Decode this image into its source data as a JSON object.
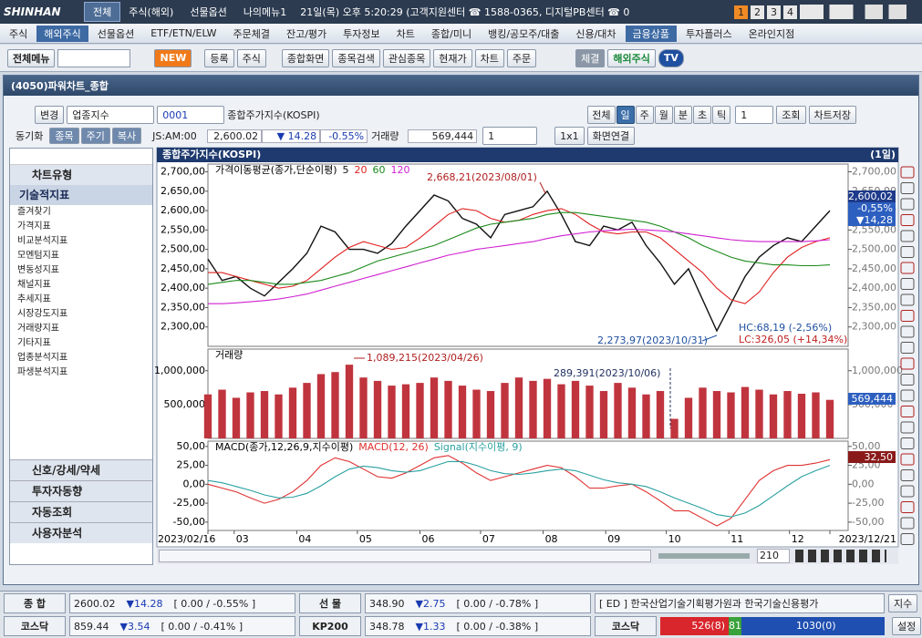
{
  "top_bar": {
    "logo": "SHINHAN",
    "tabs": [
      "전체",
      "주식(해외)",
      "선물옵션",
      "나의메뉴1"
    ],
    "clock": "21일(목) 오후 5:20:29 (고객지원센터 ☎ 1588-0365, 디지털PB센터 ☎ 0",
    "pages": [
      "1",
      "2",
      "3",
      "4"
    ]
  },
  "menu": [
    "주식",
    "해외주식",
    "선물옵션",
    "ETF/ETN/ELW",
    "주문체결",
    "잔고/평가",
    "투자정보",
    "차트",
    "종합/미니",
    "뱅킹/공모주/대출",
    "신용/대차",
    "금융상품",
    "투자플러스",
    "온라인지점"
  ],
  "toolbar": {
    "all_menu": "전체메뉴",
    "new": "NEW",
    "buttons": [
      "등록",
      "주식"
    ],
    "screens": [
      "종합화면",
      "종목검색",
      "관심종목",
      "현재가",
      "차트",
      "주문"
    ],
    "fill": "체결",
    "overseas": "해외주식",
    "tv": "TV"
  },
  "window_title": "(4050)파워차트_종합",
  "chart_toolbar": {
    "change": "변경",
    "market": "업종지수",
    "code": "0001",
    "name": "종합주가지수(KOSPI)",
    "periods": [
      "전체",
      "일",
      "주",
      "월",
      "분",
      "초",
      "틱"
    ],
    "period_n": "1",
    "query": "조회",
    "save": "차트저장"
  },
  "quote_bar": {
    "tabs": [
      "동기화",
      "종목",
      "주기",
      "복사"
    ],
    "session": "JS:AM:00",
    "price": "2,600.02",
    "change": "▼ 14.28",
    "rate": "-0.55%",
    "vol_label": "거래량",
    "volume": "569,444",
    "count": "1",
    "layout": "1x1",
    "link": "화면연결"
  },
  "side": {
    "chart_type": "차트유형",
    "tech": "기술적지표",
    "tree": [
      "즐겨찾기",
      "가격지표",
      "비교분석지표",
      "모멘텀지표",
      "변동성지표",
      "채널지표",
      "추세지표",
      "시장강도지표",
      "거래량지표",
      "기타지표",
      "업종분석지표",
      "파생분석지표"
    ],
    "bottom": [
      "신호/강세/약세",
      "투자자동향",
      "자동조회",
      "사용자분석"
    ]
  },
  "chart_header": {
    "title": "종합주가지수(KOSPI)",
    "period": "(1일)"
  },
  "chart_data": [
    {
      "type": "line",
      "legend_title": "가격이동평균(종가,단순이평)",
      "x": [
        47,
        54,
        61,
        68,
        75,
        82,
        89,
        96,
        103,
        110,
        117,
        124,
        131,
        138,
        145,
        152,
        159,
        166,
        173,
        180,
        187,
        194,
        201,
        208,
        215,
        222,
        229,
        236,
        243,
        250,
        257,
        264,
        271,
        278,
        285,
        292,
        299,
        306,
        313,
        320,
        327,
        334,
        341,
        348,
        355
      ],
      "xlim": [
        47,
        355
      ],
      "xticks": [
        {
          "value": 47,
          "label": "2023/02/16"
        },
        {
          "value": 60,
          "label": "03"
        },
        {
          "value": 91,
          "label": "04"
        },
        {
          "value": 121,
          "label": "05"
        },
        {
          "value": 152,
          "label": "06"
        },
        {
          "value": 182,
          "label": "07"
        },
        {
          "value": 213,
          "label": "08"
        },
        {
          "value": 244,
          "label": "09"
        },
        {
          "value": 274,
          "label": "10"
        },
        {
          "value": 305,
          "label": "11"
        },
        {
          "value": 335,
          "label": "12"
        },
        {
          "value": 355,
          "label": "2023/12/21"
        }
      ],
      "ylim": [
        2250,
        2720
      ],
      "yticks": [
        {
          "value": 2300,
          "label": "2,300,00"
        },
        {
          "value": 2350,
          "label": "2,350,00"
        },
        {
          "value": 2400,
          "label": "2,400,00"
        },
        {
          "value": 2450,
          "label": "2,450,00"
        },
        {
          "value": 2500,
          "label": "2,500,00"
        },
        {
          "value": 2550,
          "label": "2,550,00"
        },
        {
          "value": 2600,
          "label": "2,600,00"
        },
        {
          "value": 2650,
          "label": "2,650,00"
        },
        {
          "value": 2700,
          "label": "2,700,00"
        }
      ],
      "series": [
        {
          "name": "5",
          "color": "#111111",
          "values": [
            2475,
            2420,
            2430,
            2400,
            2380,
            2415,
            2450,
            2490,
            2560,
            2545,
            2500,
            2500,
            2490,
            2515,
            2560,
            2600,
            2640,
            2625,
            2580,
            2565,
            2530,
            2590,
            2600,
            2610,
            2650,
            2590,
            2520,
            2510,
            2560,
            2550,
            2570,
            2510,
            2465,
            2410,
            2450,
            2370,
            2290,
            2360,
            2430,
            2480,
            2510,
            2530,
            2520,
            2560,
            2600.02
          ]
        },
        {
          "name": "20",
          "color": "#e02020",
          "values": [
            2440,
            2440,
            2430,
            2420,
            2410,
            2400,
            2405,
            2420,
            2450,
            2480,
            2505,
            2520,
            2510,
            2500,
            2505,
            2530,
            2560,
            2590,
            2605,
            2600,
            2580,
            2570,
            2575,
            2590,
            2600,
            2605,
            2590,
            2565,
            2545,
            2540,
            2545,
            2545,
            2530,
            2500,
            2470,
            2440,
            2400,
            2370,
            2360,
            2390,
            2440,
            2480,
            2505,
            2520,
            2530
          ]
        },
        {
          "name": "60",
          "color": "#1a8a1a",
          "values": [
            2410,
            2415,
            2420,
            2420,
            2415,
            2410,
            2410,
            2415,
            2420,
            2430,
            2440,
            2455,
            2470,
            2480,
            2490,
            2500,
            2510,
            2525,
            2540,
            2555,
            2565,
            2570,
            2575,
            2580,
            2590,
            2595,
            2595,
            2590,
            2585,
            2580,
            2575,
            2570,
            2560,
            2545,
            2530,
            2510,
            2495,
            2480,
            2470,
            2465,
            2460,
            2460,
            2458,
            2458,
            2460
          ]
        },
        {
          "name": "120",
          "color": "#d020d0",
          "values": [
            2360,
            2360,
            2362,
            2365,
            2368,
            2372,
            2378,
            2385,
            2395,
            2405,
            2415,
            2425,
            2435,
            2445,
            2455,
            2465,
            2475,
            2485,
            2492,
            2500,
            2505,
            2510,
            2515,
            2520,
            2528,
            2535,
            2540,
            2545,
            2548,
            2550,
            2552,
            2550,
            2548,
            2545,
            2540,
            2535,
            2530,
            2525,
            2522,
            2520,
            2520,
            2520,
            2520,
            2522,
            2525
          ]
        }
      ],
      "annotations": [
        {
          "text": "2,668,21(2023/08/01)",
          "color": "#b02020"
        },
        {
          "text": "2,273,97(2023/10/31)",
          "color": "#2050a0"
        },
        {
          "text": "HC:68,19 (-2,56%)",
          "color": "#2050a0"
        },
        {
          "text": "LC:326,05 (+14,34%)",
          "color": "#c02020"
        }
      ],
      "current_labels": [
        "2,600,02",
        "-0,55%",
        "▼14,28"
      ]
    },
    {
      "type": "bar",
      "legend_title": "거래량",
      "x": [
        47,
        54,
        61,
        68,
        75,
        82,
        89,
        96,
        103,
        110,
        117,
        124,
        131,
        138,
        145,
        152,
        159,
        166,
        173,
        180,
        187,
        194,
        201,
        208,
        215,
        222,
        229,
        236,
        243,
        250,
        257,
        264,
        271,
        278,
        285,
        292,
        299,
        306,
        313,
        320,
        327,
        334,
        341,
        348,
        355
      ],
      "values": [
        650000,
        720000,
        600000,
        680000,
        700000,
        650000,
        750000,
        820000,
        950000,
        980000,
        1089215,
        900000,
        850000,
        780000,
        800000,
        820000,
        900000,
        850000,
        780000,
        720000,
        700000,
        820000,
        900000,
        850000,
        880000,
        800000,
        850000,
        780000,
        700000,
        820000,
        750000,
        650000,
        700000,
        289391,
        600000,
        750000,
        700000,
        680000,
        760000,
        720000,
        650000,
        700000,
        660000,
        680000,
        569444
      ],
      "color": "#c0343e",
      "ylim": [
        0,
        1320000
      ],
      "yticks": [
        {
          "value": 500000,
          "label": "500,000"
        },
        {
          "value": 1000000,
          "label": "1,000,000"
        }
      ],
      "annotations": [
        {
          "text": "1,089,215(2023/04/26)",
          "color": "#b02020"
        },
        {
          "text": "289,391(2023/10/06)",
          "color": "#203060"
        }
      ],
      "current_labels": [
        "569,444"
      ]
    },
    {
      "type": "line",
      "legend_title": "MACD(종가,12,26,9,지수이평)",
      "x": [
        47,
        54,
        61,
        68,
        75,
        82,
        89,
        96,
        103,
        110,
        117,
        124,
        131,
        138,
        145,
        152,
        159,
        166,
        173,
        180,
        187,
        194,
        201,
        208,
        215,
        222,
        229,
        236,
        243,
        250,
        257,
        264,
        271,
        278,
        285,
        292,
        299,
        306,
        313,
        320,
        327,
        334,
        341,
        348,
        355
      ],
      "ylim": [
        -61,
        57
      ],
      "yticks": [
        {
          "value": -50,
          "label": "-50,00"
        },
        {
          "value": -25,
          "label": "-25,00"
        },
        {
          "value": 0,
          "label": "0,00"
        },
        {
          "value": 25,
          "label": "25,00"
        },
        {
          "value": 50,
          "label": "50,00"
        }
      ],
      "series": [
        {
          "name": "MACD(12, 26)",
          "color": "#e03030",
          "values": [
            0,
            -5,
            -10,
            -18,
            -25,
            -20,
            -10,
            5,
            25,
            35,
            30,
            20,
            10,
            8,
            15,
            25,
            35,
            38,
            28,
            15,
            5,
            10,
            15,
            20,
            25,
            22,
            10,
            -5,
            -5,
            -2,
            0,
            -10,
            -22,
            -35,
            -35,
            -45,
            -55,
            -45,
            -20,
            5,
            18,
            25,
            25,
            28,
            32.5
          ]
        },
        {
          "name": "Signal(지수이평, 9)",
          "color": "#2aa0a0",
          "values": [
            5,
            2,
            -3,
            -8,
            -14,
            -18,
            -17,
            -12,
            -2,
            10,
            20,
            24,
            22,
            18,
            16,
            18,
            24,
            30,
            30,
            25,
            18,
            14,
            13,
            15,
            18,
            20,
            18,
            12,
            6,
            2,
            0,
            -3,
            -10,
            -18,
            -25,
            -32,
            -40,
            -43,
            -38,
            -28,
            -15,
            -2,
            10,
            18,
            25
          ]
        }
      ],
      "annotations": [],
      "current_labels": [
        "32,50"
      ]
    }
  ],
  "scroll": {
    "count": "210"
  },
  "status": {
    "kospi": {
      "label": "종 합",
      "price": "2600.02",
      "change": "▼14.28",
      "range": "[ 0.00 / -0.55% ]"
    },
    "futures": {
      "label": "선 물",
      "price": "348.90",
      "change": "▼2.75",
      "range": "[ 0.00 / -0.78% ]"
    },
    "news": "[ ED ] 한국산업기술기획평가원과 한국기술신용평가",
    "index_btn": "지수",
    "kosdaq": {
      "label": "코스닥",
      "price": "859.44",
      "change": "▼3.54",
      "range": "[ 0.00 / -0.41% ]"
    },
    "kp200": {
      "label": "KP200",
      "price": "348.78",
      "change": "▼1.33",
      "range": "[ 0.00 / -0.38% ]"
    },
    "breadth": {
      "label": "코스닥",
      "up": "526(8)",
      "flat": "81",
      "down": "1030(0)"
    },
    "settings": "설정"
  }
}
